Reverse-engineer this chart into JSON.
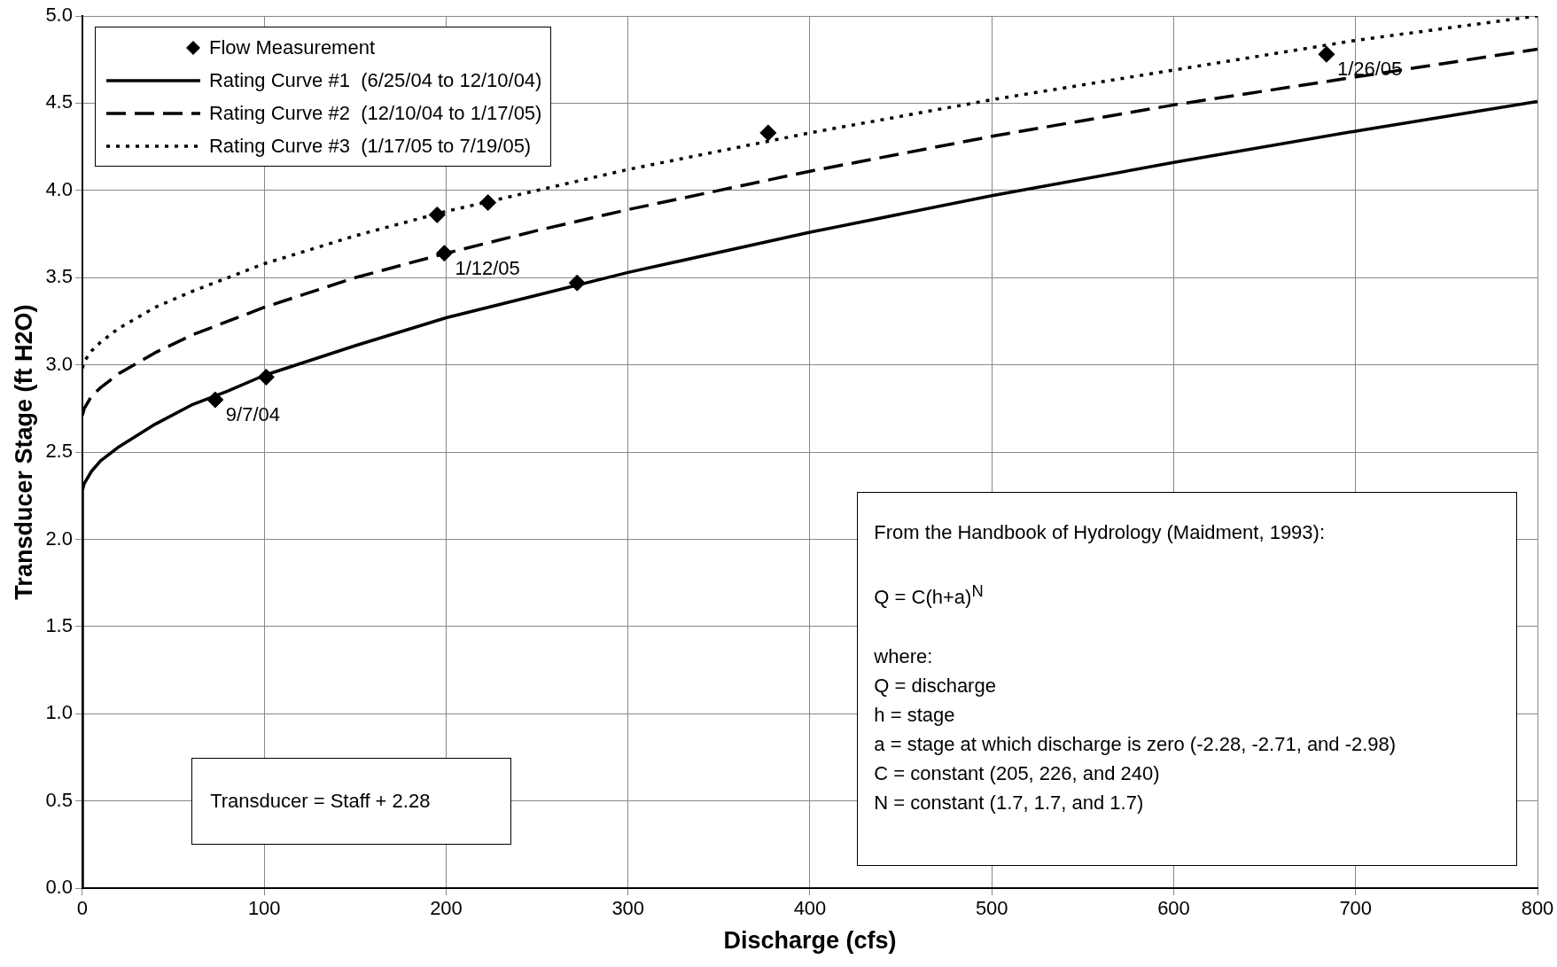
{
  "chart_data": {
    "type": "line",
    "xlabel": "Discharge (cfs)",
    "ylabel": "Transducer Stage (ft H2O)",
    "xlim": [
      0,
      800
    ],
    "xticks": [
      0,
      100,
      200,
      300,
      400,
      500,
      600,
      700,
      800
    ],
    "ylim": [
      0,
      5
    ],
    "yticks": [
      {
        "value": 0,
        "label": "0.0"
      },
      0.5,
      {
        "value": 1,
        "label": "1.0"
      },
      1.5,
      {
        "value": 2,
        "label": "2.0"
      },
      2.5,
      {
        "value": 3,
        "label": "3.0"
      },
      3.5,
      {
        "value": 4,
        "label": "4.0"
      },
      4.5,
      {
        "value": 5,
        "label": "5.0"
      }
    ],
    "grid": true,
    "legend": "top left",
    "series": [
      {
        "name": "Flow Measurement",
        "type": "scatter",
        "color": "#000000",
        "marker": "diamond",
        "x": [
          73,
          101,
          195,
          199,
          223,
          272,
          377,
          684
        ],
        "values": [
          2.8,
          2.93,
          3.86,
          3.64,
          3.93,
          3.47,
          4.33,
          4.78
        ]
      },
      {
        "name": "Rating Curve #1  (6/25/04 to 12/10/04)",
        "color": "#000000",
        "marker": "none",
        "line_style": "solid",
        "x": [
          0,
          0,
          1,
          5,
          10,
          20,
          40,
          60,
          80,
          100,
          150,
          200,
          250,
          300,
          400,
          500,
          600,
          700,
          800
        ],
        "values": [
          0,
          2.28,
          2.32,
          2.39,
          2.45,
          2.53,
          2.66,
          2.77,
          2.85,
          2.94,
          3.11,
          3.27,
          3.4,
          3.53,
          3.76,
          3.97,
          4.16,
          4.34,
          4.51
        ]
      },
      {
        "name": "Rating Curve #2  (12/10/04 to 1/17/05)",
        "color": "#000000",
        "marker": "none",
        "line_style": "dashed",
        "x": [
          0,
          1,
          5,
          10,
          20,
          40,
          60,
          80,
          100,
          150,
          200,
          250,
          300,
          400,
          500,
          600,
          700,
          800
        ],
        "values": [
          2.71,
          2.75,
          2.82,
          2.87,
          2.95,
          3.07,
          3.17,
          3.25,
          3.33,
          3.5,
          3.64,
          3.77,
          3.89,
          4.11,
          4.31,
          4.49,
          4.65,
          4.81
        ]
      },
      {
        "name": "Rating Curve #3  (1/17/05 to 7/19/05)",
        "color": "#000000",
        "marker": "none",
        "line_style": "dotted",
        "x": [
          0,
          1,
          5,
          10,
          20,
          40,
          60,
          80,
          100,
          150,
          200,
          250,
          300,
          400,
          500,
          600,
          700,
          800
        ],
        "values": [
          2.98,
          3.02,
          3.08,
          3.13,
          3.21,
          3.33,
          3.42,
          3.5,
          3.58,
          3.74,
          3.88,
          4.0,
          4.12,
          4.33,
          4.52,
          4.69,
          4.86,
          5.0
        ]
      }
    ],
    "annotations": [
      {
        "text": "9/7/04",
        "x": 73,
        "y": 2.8
      },
      {
        "text": "1/12/05",
        "x": 199,
        "y": 3.64
      },
      {
        "text": "1/26/05",
        "x": 684,
        "y": 4.78
      },
      "Transducer  =  Staff + 2.28",
      "From the Handbook of Hydrology (Maidment, 1993):\n\nQ = C(h+a)$^{N}$\n\nwhere:\nQ = discharge\nh = stage\na = stage at which discharge is zero (-2.28, -2.71, and -2.98)\nC = constant (205, 226, and 240)\nN = constant (1.7, 1.7, and 1.7)"
    ]
  }
}
